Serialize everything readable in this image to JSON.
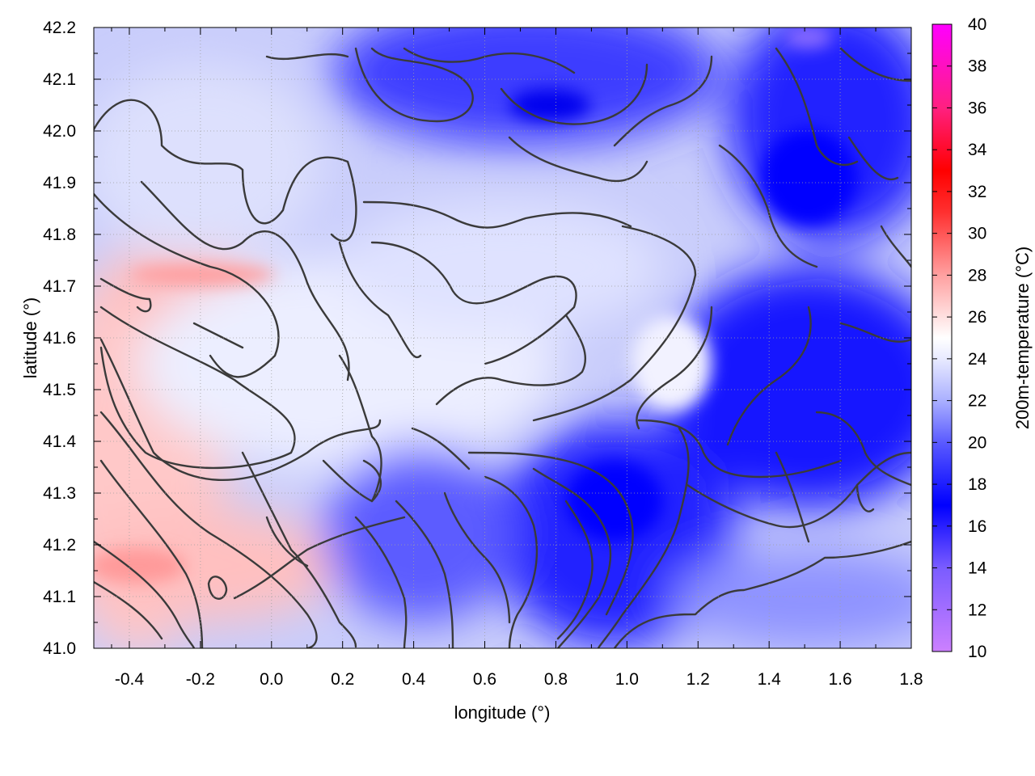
{
  "chart_data": {
    "type": "heatmap",
    "title": "",
    "xlabel": "longitude (°)",
    "ylabel": "latitude (°)",
    "colorbar_label": "200m-temperature (°C)",
    "xlim": [
      -0.5,
      1.8
    ],
    "ylim": [
      41.0,
      42.2
    ],
    "x_ticks": [
      "-0.4",
      "-0.2",
      "0.0",
      "0.2",
      "0.4",
      "0.6",
      "0.8",
      "1.0",
      "1.2",
      "1.4",
      "1.6",
      "1.8"
    ],
    "y_ticks": [
      "41.0",
      "41.1",
      "41.2",
      "41.3",
      "41.4",
      "41.5",
      "41.6",
      "41.7",
      "41.8",
      "41.9",
      "42.0",
      "42.1",
      "42.2"
    ],
    "colorbar_range": [
      10,
      40
    ],
    "colorbar_ticks": [
      "10",
      "12",
      "14",
      "16",
      "18",
      "20",
      "22",
      "24",
      "26",
      "28",
      "30",
      "32",
      "34",
      "36",
      "38",
      "40"
    ],
    "colormap": [
      {
        "value": 10,
        "color": "#cc80ff"
      },
      {
        "value": 14,
        "color": "#7a5cff"
      },
      {
        "value": 17,
        "color": "#0000ff"
      },
      {
        "value": 20,
        "color": "#5a5aff"
      },
      {
        "value": 22,
        "color": "#aab0ff"
      },
      {
        "value": 24,
        "color": "#e8eaff"
      },
      {
        "value": 25,
        "color": "#ffffff"
      },
      {
        "value": 26,
        "color": "#ffe0e0"
      },
      {
        "value": 28,
        "color": "#ffa0a0"
      },
      {
        "value": 31,
        "color": "#ff3030"
      },
      {
        "value": 33,
        "color": "#ff0000"
      },
      {
        "value": 36,
        "color": "#ff2080"
      },
      {
        "value": 40,
        "color": "#ff00ff"
      }
    ],
    "grid": true,
    "contours": true
  }
}
